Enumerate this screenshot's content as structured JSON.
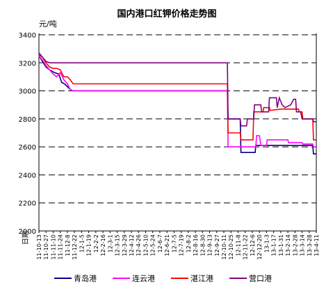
{
  "chart_data": {
    "type": "line",
    "title": "国内港口红钾价格走势图",
    "ylabel": "元/吨",
    "xlabel": "日期",
    "ylim": [
      2000,
      3400
    ],
    "yticks": [
      2000,
      2200,
      2400,
      2600,
      2800,
      3000,
      3200,
      3400
    ],
    "grid": true,
    "legend_position": "bottom",
    "categories": [
      "11-10-13",
      "11-10-27",
      "11-11-10",
      "11-11-24",
      "11-12-8",
      "11-12-22",
      "12-1-5",
      "12-1-19",
      "12-2-2",
      "12-2-16",
      "12-3-1",
      "12-3-15",
      "12-3-29",
      "12-4-12",
      "12-4-26",
      "12-5-10",
      "12-5-24",
      "12-6-7",
      "12-6-21",
      "12-7-5",
      "12-7-19",
      "12-8-2",
      "12-8-16",
      "12-8-30",
      "12-9-13",
      "12-9-27",
      "12-10-11",
      "12-10-25",
      "12-11-8",
      "12-11-22",
      "12-12-6",
      "12-12-20",
      "13-1-3",
      "13-1-17",
      "13-1-31",
      "13-2-14",
      "13-2-28",
      "13-3-14",
      "13-3-28",
      "13-4-11"
    ],
    "x_range": [
      0,
      39
    ],
    "series": [
      {
        "name": "青岛港",
        "color": "#000080",
        "points": [
          [
            0,
            3250
          ],
          [
            0.5,
            3210
          ],
          [
            1,
            3170
          ],
          [
            1.5,
            3150
          ],
          [
            2.2,
            3130
          ],
          [
            2.8,
            3120
          ],
          [
            3.2,
            3060
          ],
          [
            3.6,
            3050
          ],
          [
            4,
            3030
          ],
          [
            4.4,
            3010
          ],
          [
            4.8,
            3000
          ],
          [
            5.2,
            3000
          ],
          [
            26.5,
            3000
          ],
          [
            26.6,
            2800
          ],
          [
            28.3,
            2800
          ],
          [
            28.4,
            2560
          ],
          [
            30.4,
            2560
          ],
          [
            30.5,
            2610
          ],
          [
            35,
            2610
          ],
          [
            38.5,
            2610
          ],
          [
            38.6,
            2550
          ],
          [
            39,
            2550
          ]
        ]
      },
      {
        "name": "连云港",
        "color": "#ff00ff",
        "points": [
          [
            0,
            3250
          ],
          [
            0.5,
            3220
          ],
          [
            1,
            3180
          ],
          [
            1.5,
            3150
          ],
          [
            2,
            3120
          ],
          [
            2.5,
            3100
          ],
          [
            3,
            3130
          ],
          [
            3.5,
            3080
          ],
          [
            4,
            3050
          ],
          [
            4.4,
            3010
          ],
          [
            4.8,
            3000
          ],
          [
            5.2,
            3000
          ],
          [
            26.5,
            3000
          ],
          [
            26.6,
            2600
          ],
          [
            30.5,
            2600
          ],
          [
            30.6,
            2680
          ],
          [
            31,
            2680
          ],
          [
            31.2,
            2610
          ],
          [
            32,
            2610
          ],
          [
            32.1,
            2650
          ],
          [
            35,
            2650
          ],
          [
            35.1,
            2630
          ],
          [
            37,
            2630
          ],
          [
            37.1,
            2620
          ],
          [
            38.5,
            2620
          ],
          [
            38.6,
            2600
          ],
          [
            39,
            2600
          ]
        ]
      },
      {
        "name": "湛江港",
        "color": "#ff0000",
        "points": [
          [
            0,
            3260
          ],
          [
            0.5,
            3240
          ],
          [
            1,
            3200
          ],
          [
            1.5,
            3170
          ],
          [
            2,
            3160
          ],
          [
            2.5,
            3160
          ],
          [
            3,
            3150
          ],
          [
            3.5,
            3100
          ],
          [
            4,
            3100
          ],
          [
            4.4,
            3080
          ],
          [
            4.8,
            3050
          ],
          [
            5.2,
            3050
          ],
          [
            26.5,
            3050
          ],
          [
            26.6,
            2700
          ],
          [
            28.3,
            2700
          ],
          [
            28.4,
            2650
          ],
          [
            30.1,
            2650
          ],
          [
            30.2,
            2850
          ],
          [
            31.5,
            2850
          ],
          [
            31.6,
            2880
          ],
          [
            32.4,
            2880
          ],
          [
            32.5,
            2860
          ],
          [
            34,
            2870
          ],
          [
            36.5,
            2870
          ],
          [
            36.6,
            2850
          ],
          [
            37,
            2850
          ],
          [
            37.1,
            2800
          ],
          [
            38.5,
            2800
          ],
          [
            38.6,
            2650
          ],
          [
            39,
            2650
          ]
        ]
      },
      {
        "name": "营口港",
        "color": "#800080",
        "points": [
          [
            0,
            3270
          ],
          [
            0.5,
            3240
          ],
          [
            1,
            3210
          ],
          [
            1.5,
            3200
          ],
          [
            26.5,
            3200
          ],
          [
            26.6,
            2800
          ],
          [
            28.3,
            2800
          ],
          [
            28.4,
            2750
          ],
          [
            29.2,
            2750
          ],
          [
            29.3,
            2800
          ],
          [
            30.2,
            2800
          ],
          [
            30.3,
            2900
          ],
          [
            31.2,
            2900
          ],
          [
            31.3,
            2850
          ],
          [
            32.3,
            2850
          ],
          [
            32.4,
            2950
          ],
          [
            33.4,
            2950
          ],
          [
            33.5,
            2880
          ],
          [
            33.8,
            2950
          ],
          [
            34.2,
            2900
          ],
          [
            34.6,
            2880
          ],
          [
            35.4,
            2900
          ],
          [
            35.8,
            2940
          ],
          [
            36.1,
            2940
          ],
          [
            36.2,
            2850
          ],
          [
            36.8,
            2850
          ],
          [
            37,
            2800
          ],
          [
            38.5,
            2800
          ],
          [
            38.6,
            2780
          ],
          [
            39,
            2780
          ]
        ]
      }
    ]
  }
}
